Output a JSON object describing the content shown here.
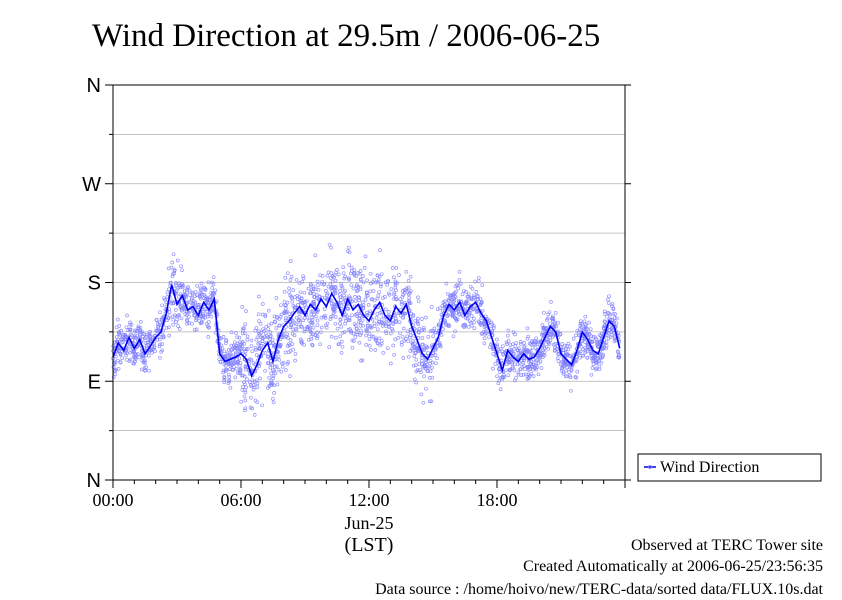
{
  "chart_data": {
    "type": "scatter",
    "title": "Wind Direction at 29.5m / 2006-06-25",
    "y_tick_labels": [
      "N",
      "E",
      "S",
      "W",
      "N"
    ],
    "y_ticks": [
      0,
      90,
      180,
      270,
      360
    ],
    "ylim": [
      0,
      360
    ],
    "x_tick_labels": [
      "00:00",
      "06:00",
      "12:00",
      "18:00"
    ],
    "x_ticks": [
      0,
      6,
      12,
      18
    ],
    "xlim": [
      0,
      24
    ],
    "date_label": "Jun-25",
    "xlabel": "(LST)",
    "grid": true,
    "legend": {
      "position": "right",
      "entries": [
        "Wind Direction"
      ]
    },
    "series": [
      {
        "name": "Wind Direction",
        "kind": "line",
        "color": "#0000ee",
        "x": [
          0.0,
          0.25,
          0.5,
          0.75,
          1.0,
          1.25,
          1.5,
          1.75,
          2.0,
          2.25,
          2.5,
          2.75,
          3.0,
          3.25,
          3.5,
          3.75,
          4.0,
          4.25,
          4.5,
          4.75,
          5.0,
          5.25,
          5.5,
          5.75,
          6.0,
          6.25,
          6.5,
          6.75,
          7.0,
          7.25,
          7.5,
          7.75,
          8.0,
          8.25,
          8.5,
          8.75,
          9.0,
          9.25,
          9.5,
          9.75,
          10.0,
          10.25,
          10.5,
          10.75,
          11.0,
          11.25,
          11.5,
          11.75,
          12.0,
          12.25,
          12.5,
          12.75,
          13.0,
          13.25,
          13.5,
          13.75,
          14.0,
          14.25,
          14.5,
          14.75,
          15.0,
          15.25,
          15.5,
          15.75,
          16.0,
          16.25,
          16.5,
          16.75,
          17.0,
          17.25,
          17.5,
          17.75,
          18.0,
          18.25,
          18.5,
          18.75,
          19.0,
          19.25,
          19.5,
          19.75,
          20.0,
          20.25,
          20.5,
          20.75,
          21.0,
          21.25,
          21.5,
          21.75,
          22.0,
          22.25,
          22.5,
          22.75,
          23.0,
          23.25,
          23.5,
          23.75
        ],
        "values": [
          112,
          125,
          118,
          130,
          120,
          128,
          115,
          122,
          130,
          135,
          152,
          178,
          160,
          168,
          155,
          158,
          150,
          162,
          155,
          165,
          115,
          108,
          110,
          112,
          115,
          110,
          95,
          105,
          118,
          125,
          108,
          128,
          140,
          145,
          152,
          158,
          150,
          160,
          155,
          165,
          158,
          170,
          162,
          150,
          165,
          155,
          160,
          150,
          145,
          155,
          162,
          150,
          145,
          158,
          152,
          160,
          140,
          128,
          115,
          110,
          120,
          130,
          150,
          160,
          155,
          162,
          150,
          158,
          162,
          152,
          145,
          130,
          115,
          100,
          118,
          112,
          108,
          115,
          110,
          112,
          120,
          130,
          140,
          135,
          115,
          110,
          105,
          118,
          135,
          128,
          118,
          115,
          130,
          145,
          140,
          120
        ]
      }
    ],
    "scatter_note": "raw 10-second samples drawn as light blue open circles around the line"
  },
  "footer": {
    "line1": "Observed at TERC Tower site",
    "line2": "Created Automatically at 2006-06-25/23:56:35",
    "line3": "Data source : /home/hoivo/new/TERC-data/sorted  data/FLUX.10s.dat"
  },
  "colors": {
    "line": "#0000ee",
    "points": "#8080ff",
    "grid": "#b0b0b0"
  }
}
